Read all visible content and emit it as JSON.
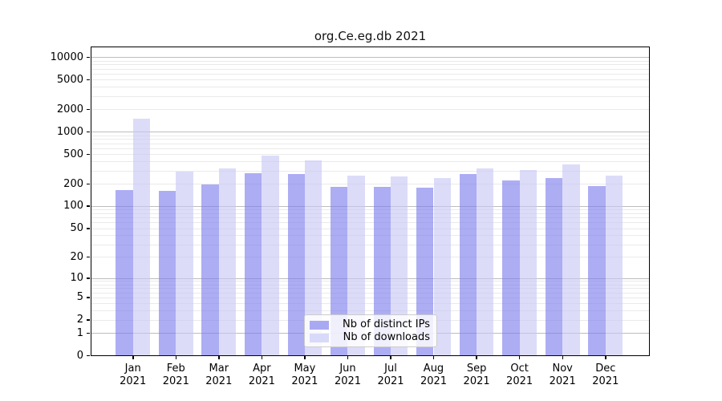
{
  "chart_data": {
    "type": "bar",
    "title": "org.Ce.eg.db 2021",
    "months": [
      "Jan",
      "Feb",
      "Mar",
      "Apr",
      "May",
      "Jun",
      "Jul",
      "Aug",
      "Sep",
      "Oct",
      "Nov",
      "Dec"
    ],
    "year": "2021",
    "categories": [
      "Jan 2021",
      "Feb 2021",
      "Mar 2021",
      "Apr 2021",
      "May 2021",
      "Jun 2021",
      "Jul 2021",
      "Aug 2021",
      "Sep 2021",
      "Oct 2021",
      "Nov 2021",
      "Dec 2021"
    ],
    "series": [
      {
        "name": "Nb of distinct IPs",
        "swatch_color": "#a9a9f3",
        "bar_color": "rgba(122,122,237,0.62)",
        "values": [
          165,
          160,
          195,
          275,
          270,
          180,
          180,
          178,
          270,
          222,
          240,
          185
        ]
      },
      {
        "name": "Nb of downloads",
        "swatch_color": "#d9d9f9",
        "bar_color": "rgba(198,198,245,0.62)",
        "values": [
          1500,
          290,
          325,
          475,
          410,
          260,
          250,
          237,
          320,
          305,
          365,
          260
        ]
      }
    ],
    "xlabel": "",
    "ylabel": "",
    "yscale": "log1p",
    "ylim": [
      0,
      14000
    ],
    "y_tick_values": [
      10000,
      5000,
      2000,
      1000,
      500,
      200,
      100,
      50,
      20,
      10,
      5,
      2,
      1,
      0
    ],
    "grid": "horizontal major and minor gridlines on",
    "legend_position": "lower center inside plot"
  },
  "colors": {
    "background": "#ffffff",
    "axis_frame": "#000000",
    "major_gridline": "#bdbdbd",
    "minor_gridline": "#eaeaea",
    "dark_bar": "rgba(122,122,237,0.62)",
    "light_bar": "rgba(198,198,245,0.62)"
  }
}
